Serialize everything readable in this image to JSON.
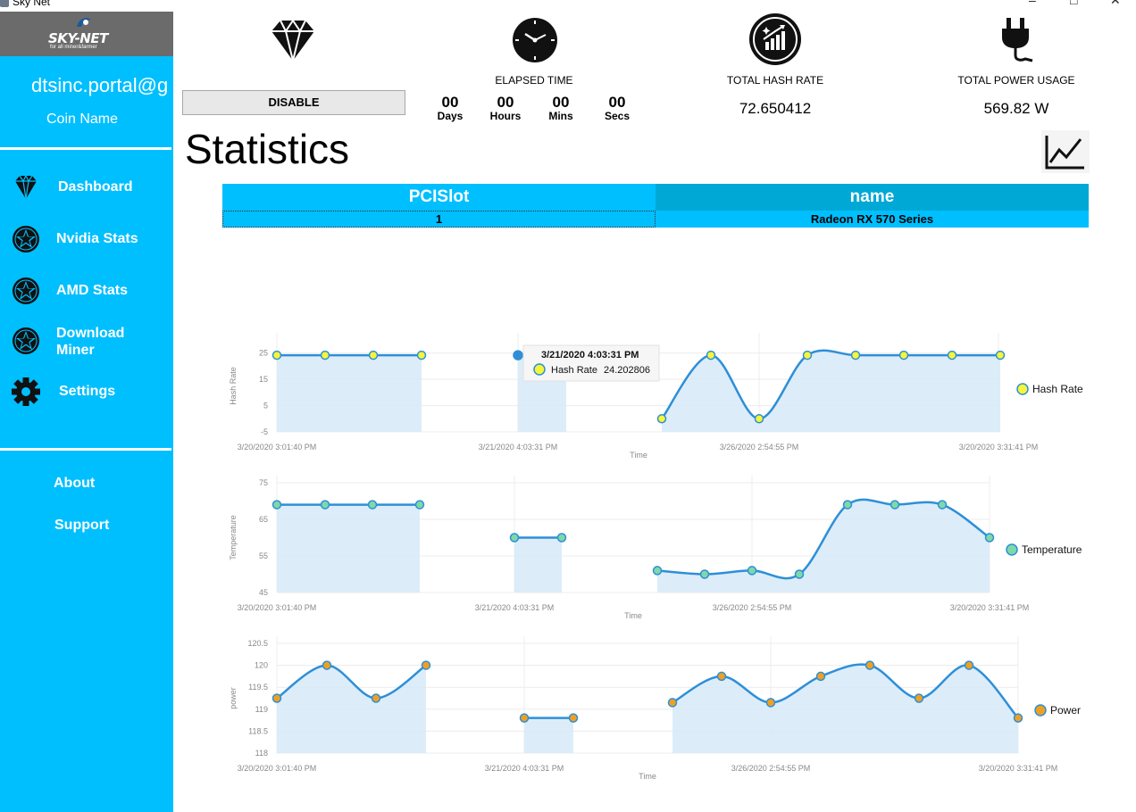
{
  "window": {
    "title": "Sky Net"
  },
  "sidebar": {
    "brand": "SKY-NET",
    "tagline": "for all miner&farmer",
    "email": "dtsinc.portal@g",
    "coin_name": "Coin Name",
    "nav": [
      {
        "label": "Dashboard",
        "icon": "diamond-icon"
      },
      {
        "label": "Nvidia Stats",
        "icon": "star-badge-icon"
      },
      {
        "label": "AMD Stats",
        "icon": "star-badge-icon"
      },
      {
        "label": "Download Miner",
        "icon": "star-badge-icon"
      },
      {
        "label": "Settings",
        "icon": "gear-icon"
      }
    ],
    "about": "About",
    "support": "Support"
  },
  "top": {
    "disable_label": "DISABLE",
    "elapsed_label": "ELAPSED TIME",
    "elapsed": {
      "days": "00",
      "hours": "00",
      "mins": "00",
      "secs": "00",
      "days_label": "Days",
      "hours_label": "Hours",
      "mins_label": "Mins",
      "secs_label": "Secs"
    },
    "hash_label": "TOTAL HASH RATE",
    "hash_value": "72.650412",
    "power_label": "TOTAL POWER USAGE",
    "power_value": "569.82 W"
  },
  "page": {
    "heading": "Statistics"
  },
  "table": {
    "headers": [
      "PCISlot",
      "name"
    ],
    "rows": [
      [
        "1",
        "Radeon RX 570 Series"
      ]
    ],
    "colors": {
      "header_left": "#00BFFF",
      "header_right": "#00A8D6",
      "cell": "#00BFFF"
    }
  },
  "tooltip": {
    "time": "3/21/2020 4:03:31 PM",
    "series": "Hash Rate",
    "value": "24.202806"
  },
  "chart_data": [
    {
      "type": "area",
      "ylabel": "Hash Rate",
      "xlabel": "Time",
      "legend": "Hash Rate",
      "legend_position": "right",
      "ylim": [
        -5,
        30
      ],
      "yticks": [
        25,
        15,
        5,
        -5
      ],
      "xticks": [
        "3/20/2020 3:01:40 PM",
        "3/21/2020 4:03:31 PM",
        "3/26/2020 2:54:55 PM",
        "3/20/2020 3:31:41 PM"
      ],
      "point_fill": "#F5F53A",
      "segments": [
        [
          24.2,
          24.2,
          24.2,
          24.2
        ],
        [
          24.2,
          24.2
        ],
        [
          0,
          24.2,
          0,
          24.2,
          24.2,
          24.2,
          24.2,
          24.2
        ]
      ],
      "smooth": [
        false,
        false,
        true
      ]
    },
    {
      "type": "area",
      "ylabel": "Temperature",
      "xlabel": "Time",
      "legend": "Temperature",
      "legend_position": "right",
      "ylim": [
        45,
        75
      ],
      "yticks": [
        75,
        65,
        55,
        45
      ],
      "xticks": [
        "3/20/2020 3:01:40 PM",
        "3/21/2020 4:03:31 PM",
        "3/26/2020 2:54:55 PM",
        "3/20/2020 3:31:41 PM"
      ],
      "point_fill": "#7ED8A8",
      "segments": [
        [
          69,
          69,
          69,
          69
        ],
        [
          60,
          60
        ],
        [
          51,
          50,
          51,
          50,
          69,
          69,
          69,
          60
        ]
      ],
      "smooth": [
        false,
        false,
        true
      ]
    },
    {
      "type": "area",
      "ylabel": "power",
      "xlabel": "Time",
      "legend": "Power",
      "legend_position": "right",
      "ylim": [
        118,
        120.5
      ],
      "yticks": [
        120.5,
        120,
        119.5,
        119,
        118.5,
        118
      ],
      "xticks": [
        "3/20/2020 3:01:40 PM",
        "3/21/2020 4:03:31 PM",
        "3/26/2020 2:54:55 PM",
        "3/20/2020 3:31:41 PM"
      ],
      "point_fill": "#F0A020",
      "segments": [
        [
          119.25,
          120,
          119.25,
          120
        ],
        [
          118.8,
          118.8
        ],
        [
          119.15,
          119.75,
          119.15,
          119.75,
          120,
          119.25,
          120,
          118.8
        ]
      ],
      "smooth": [
        true,
        false,
        true
      ]
    }
  ]
}
